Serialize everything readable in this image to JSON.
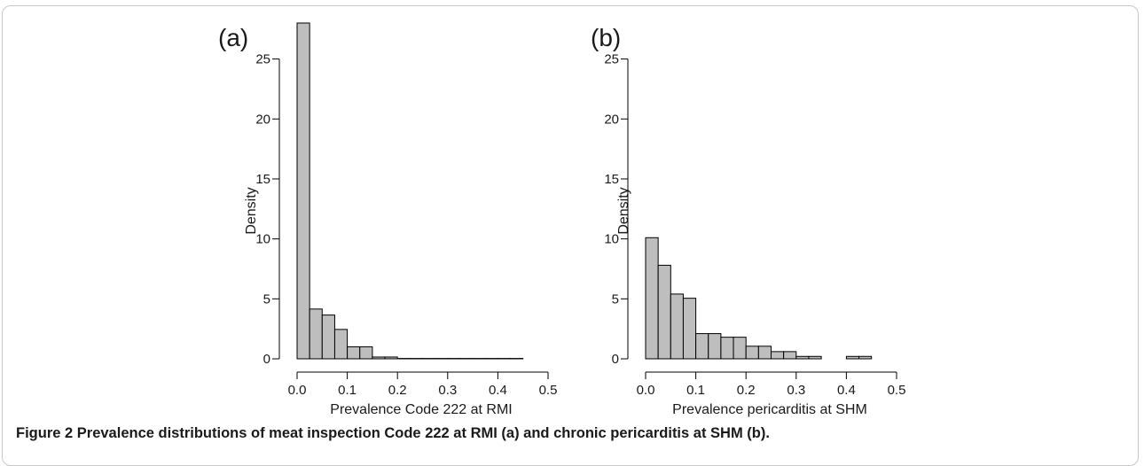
{
  "caption": {
    "label": "Figure 2",
    "text": "Prevalence distributions of meat inspection Code 222 at RMI (a) and chronic pericarditis at SHM (b)."
  },
  "colors": {
    "bar_fill": "#bebebe",
    "bar_stroke": "#000000",
    "axis": "#000000"
  },
  "chart_data": [
    {
      "type": "bar",
      "panel_label": "(a)",
      "xlabel": "Prevalence Code 222 at RMI",
      "ylabel": "Density",
      "bin_width": 0.025,
      "bins_start": [
        0.0,
        0.025,
        0.05,
        0.075,
        0.1,
        0.125,
        0.15,
        0.175,
        0.2,
        0.225,
        0.25,
        0.275,
        0.3,
        0.325,
        0.35,
        0.375,
        0.4,
        0.425
      ],
      "values": [
        28.0,
        4.15,
        3.65,
        2.45,
        1.0,
        1.0,
        0.15,
        0.15,
        0.03,
        0.03,
        0.03,
        0.03,
        0.03,
        0.03,
        0.03,
        0.03,
        0.03,
        0.03
      ],
      "xlim": [
        0,
        0.5
      ],
      "ylim": [
        0,
        28
      ],
      "xticks": [
        0.0,
        0.1,
        0.2,
        0.3,
        0.4,
        0.5
      ],
      "xtick_labels": [
        "0.0",
        "0.1",
        "0.2",
        "0.3",
        "0.4",
        "0.5"
      ],
      "yticks": [
        0,
        5,
        10,
        15,
        20,
        25
      ],
      "ytick_labels": [
        "0",
        "5",
        "10",
        "15",
        "20",
        "25"
      ]
    },
    {
      "type": "bar",
      "panel_label": "(b)",
      "xlabel": "Prevalence pericarditis at SHM",
      "ylabel": "Density",
      "bin_width": 0.025,
      "bins_start": [
        0.0,
        0.025,
        0.05,
        0.075,
        0.1,
        0.125,
        0.15,
        0.175,
        0.2,
        0.225,
        0.25,
        0.275,
        0.3,
        0.325,
        0.35,
        0.375,
        0.4,
        0.425
      ],
      "values": [
        10.1,
        7.8,
        5.4,
        5.05,
        2.1,
        2.1,
        1.8,
        1.8,
        1.05,
        1.05,
        0.6,
        0.6,
        0.2,
        0.2,
        0.0,
        0.0,
        0.2,
        0.2
      ],
      "xlim": [
        0,
        0.5
      ],
      "ylim": [
        0,
        28
      ],
      "xticks": [
        0.0,
        0.1,
        0.2,
        0.3,
        0.4,
        0.5
      ],
      "xtick_labels": [
        "0.0",
        "0.1",
        "0.2",
        "0.3",
        "0.4",
        "0.5"
      ],
      "yticks": [
        0,
        5,
        10,
        15,
        20,
        25
      ],
      "ytick_labels": [
        "0",
        "5",
        "10",
        "15",
        "20",
        "25"
      ]
    }
  ]
}
